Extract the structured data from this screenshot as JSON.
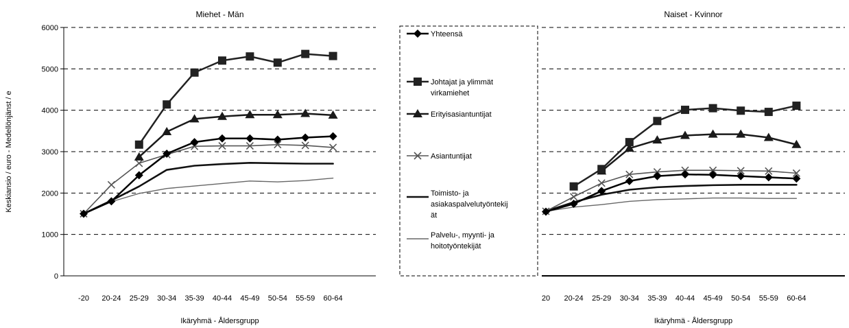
{
  "chart_data": {
    "type": "line",
    "ylabel": "Keskiansio / euro - Medellönjänst / e",
    "ylim": [
      0,
      6000
    ],
    "yticks": [
      "0",
      "1000",
      "2000",
      "3000",
      "4000",
      "5000",
      "6000"
    ],
    "grid": true,
    "legend_position": "center",
    "legend": [
      {
        "label": "Yhteensä",
        "marker": "diamond",
        "color": "#000000",
        "width": 2.5
      },
      {
        "label": "Johtajat ja ylimmät virkamiehet",
        "label_lines": [
          "Johtajat ja ylimmät",
          "virkamiehet"
        ],
        "marker": "square",
        "color": "#222222",
        "width": 2.5
      },
      {
        "label": "Erityisasiantuntijat",
        "label_lines": [
          "Erityisasiantuntijat"
        ],
        "marker": "triangle",
        "color": "#1a1a1a",
        "width": 2.5
      },
      {
        "label": "Asiantuntijat",
        "label_lines": [
          "Asiantuntijat"
        ],
        "marker": "x",
        "color": "#555555",
        "width": 1.6
      },
      {
        "label": "Toimisto- ja asiakaspalvelutyöntekijät",
        "label_lines": [
          "Toimisto- ja",
          "asiakaspalvelutyöntekij",
          "ät"
        ],
        "marker": "none",
        "color": "#111111",
        "width": 2.6
      },
      {
        "label": "Palvelu-, myynti- ja hoitotyöntekijät",
        "label_lines": [
          "Palvelu-, myynti- ja",
          "hoitotyöntekijät"
        ],
        "marker": "none",
        "color": "#666666",
        "width": 1.4
      }
    ],
    "charts": [
      {
        "title": "Miehet - Män",
        "xlabel": "Ikäryhmä - Åldersgrupp",
        "categories": [
          "-20",
          "20-24",
          "25-29",
          "30-34",
          "35-39",
          "40-44",
          "45-49",
          "50-54",
          "55-59",
          "60-64"
        ],
        "series": [
          {
            "name": "Yhteensä",
            "values": [
              1500,
              1800,
              2430,
              2950,
              3230,
              3320,
              3320,
              3290,
              3340,
              3370
            ]
          },
          {
            "name": "Johtajat ja ylimmät virkamiehet",
            "values": [
              null,
              null,
              3170,
              4140,
              4910,
              5200,
              5300,
              5150,
              5360,
              5310
            ]
          },
          {
            "name": "Erityisasiantuntijat",
            "values": [
              null,
              null,
              2870,
              3480,
              3790,
              3850,
              3890,
              3890,
              3920,
              3880
            ]
          },
          {
            "name": "Asiantuntijat",
            "values": [
              1500,
              2200,
              2720,
              2930,
              3130,
              3140,
              3140,
              3170,
              3150,
              3100
            ]
          },
          {
            "name": "Toimisto- ja asiakaspalvelutyöntekijät",
            "values": [
              1500,
              1820,
              2160,
              2560,
              2660,
              2700,
              2730,
              2720,
              2710,
              2710
            ]
          },
          {
            "name": "Palvelu-, myynti- ja hoitotyöntekijät",
            "values": [
              1500,
              1790,
              1990,
              2110,
              2170,
              2230,
              2290,
              2270,
              2300,
              2360
            ]
          }
        ]
      },
      {
        "title": "Naiset - Kvinnor",
        "xlabel": "Ikäryhmä - Åldersgrupp",
        "categories": [
          "20",
          "20-24",
          "25-29",
          "30-34",
          "35-39",
          "40-44",
          "45-49",
          "50-54",
          "55-59",
          "60-64"
        ],
        "series": [
          {
            "name": "Yhteensä",
            "values": [
              1550,
              1740,
              2050,
              2290,
              2410,
              2450,
              2440,
              2410,
              2380,
              2350
            ]
          },
          {
            "name": "Johtajat ja ylimmät virkamiehet",
            "values": [
              null,
              2160,
              2580,
              3230,
              3740,
              4010,
              4050,
              3990,
              3960,
              4110
            ]
          },
          {
            "name": "Erityisasiantuntijat",
            "values": [
              null,
              null,
              2530,
              3080,
              3280,
              3390,
              3420,
              3420,
              3340,
              3170
            ]
          },
          {
            "name": "Asiantuntijat",
            "values": [
              1560,
              1910,
              2240,
              2450,
              2510,
              2550,
              2550,
              2540,
              2530,
              2480
            ]
          },
          {
            "name": "Toimisto- ja asiakaspalvelutyöntekijät",
            "values": [
              1560,
              1780,
              1960,
              2080,
              2140,
              2170,
              2190,
              2200,
              2200,
              2200
            ]
          },
          {
            "name": "Palvelu-, myynti- ja hoitotyöntekijät",
            "values": [
              1560,
              1660,
              1720,
              1800,
              1840,
              1860,
              1880,
              1880,
              1870,
              1870
            ]
          }
        ]
      }
    ]
  }
}
